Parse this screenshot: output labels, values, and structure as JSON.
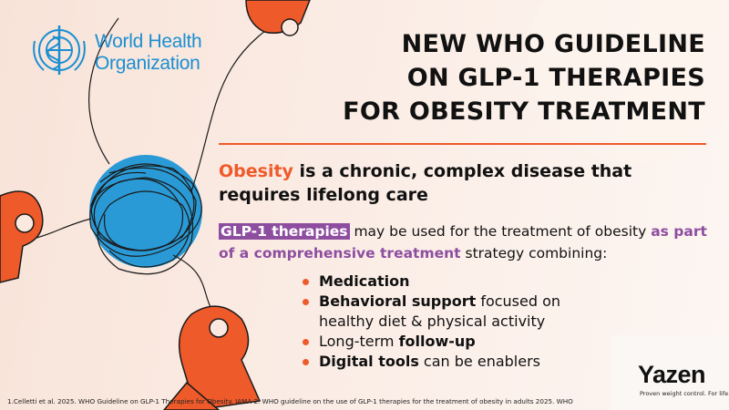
{
  "logo": {
    "line1": "World Health",
    "line2": "Organization"
  },
  "title": [
    "NEW WHO GUIDELINE",
    "ON GLP-1 THERAPIES",
    "FOR OBESITY TREATMENT"
  ],
  "statement": {
    "highlight": "Obesity",
    "text": " is a chronic, complex disease that requires lifelong care"
  },
  "paragraph": {
    "highlight1": "GLP-1 therapies",
    "text1": " may be used for the treatment of obesity ",
    "highlight2": "as part of a comprehensive treatment",
    "text2": " strategy combining:"
  },
  "bullets": [
    [
      {
        "text": "Medication",
        "bold": true
      }
    ],
    [
      {
        "text": "Behavioral support",
        "bold": true
      },
      {
        "text": " focused on healthy diet & physical activity",
        "bold": false
      }
    ],
    [
      {
        "text": "Long-term ",
        "bold": false
      },
      {
        "text": "follow-up",
        "bold": true
      }
    ],
    [
      {
        "text": "Digital tools",
        "bold": true
      },
      {
        "text": " can be enablers",
        "bold": false
      }
    ]
  ],
  "footnote": "1.Celletti et al. 2025. WHO Guideline on GLP-1 Therapies for Obesity. JAMA  2. WHO guideline on the use of GLP-1 therapies for the treatment of obesity in adults 2025. WHO",
  "brand": {
    "name": "Yazen",
    "tagline": "Proven weight control. For life."
  }
}
